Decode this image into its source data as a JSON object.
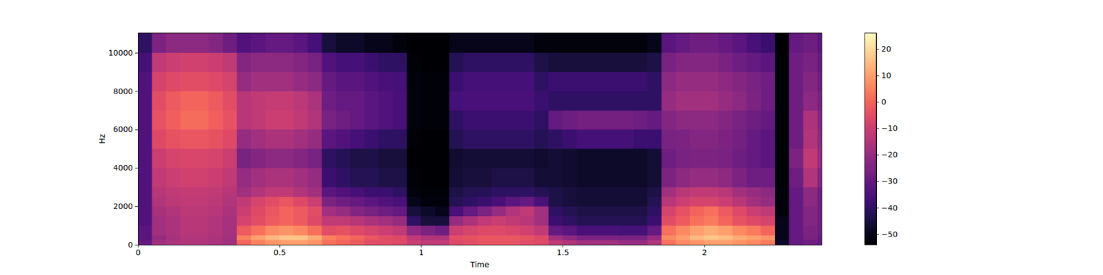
{
  "chart_data": {
    "type": "heatmap",
    "x_label": "Time",
    "y_label": "Hz",
    "color": "magma",
    "xlim": [
      0,
      2.415
    ],
    "ylim": [
      0,
      11025
    ],
    "xticks": [
      0,
      0.5,
      1,
      1.5,
      2
    ],
    "yticks": [
      0,
      2000,
      4000,
      6000,
      8000,
      10000
    ],
    "x_edges": [
      0,
      0.05,
      0.1,
      0.15,
      0.2,
      0.25,
      0.3,
      0.35,
      0.4,
      0.45,
      0.5,
      0.55,
      0.6,
      0.65,
      0.7,
      0.75,
      0.8,
      0.85,
      0.9,
      0.95,
      1,
      1.05,
      1.1,
      1.15,
      1.2,
      1.25,
      1.3,
      1.35,
      1.4,
      1.45,
      1.5,
      1.55,
      1.6,
      1.65,
      1.7,
      1.75,
      1.8,
      1.85,
      1.9,
      1.95,
      2,
      2.05,
      2.1,
      2.15,
      2.2,
      2.25,
      2.3,
      2.35,
      2.4,
      2.45
    ],
    "y_edges": [
      0,
      250,
      500,
      1000,
      1500,
      2000,
      2500,
      3000,
      4000,
      5000,
      6000,
      7000,
      8000,
      9000,
      10000,
      11025
    ],
    "z": [
      [
        -30,
        -18,
        -16,
        -15,
        -15,
        -16,
        -18,
        0,
        5,
        8,
        10,
        10,
        8,
        2,
        0,
        -2,
        -5,
        -5,
        -6,
        -10,
        -12,
        -12,
        -6,
        -5,
        -4,
        -4,
        -4,
        -5,
        -6,
        -12,
        -15,
        -18,
        -18,
        -18,
        -20,
        -20,
        -15,
        2,
        6,
        8,
        10,
        10,
        8,
        6,
        4,
        -48,
        -30,
        -28,
        -30
      ],
      [
        -32,
        -20,
        -17,
        -15,
        -15,
        -16,
        -18,
        5,
        10,
        14,
        16,
        16,
        12,
        5,
        2,
        0,
        -3,
        -5,
        -6,
        -12,
        -15,
        -15,
        -5,
        -4,
        -3,
        -3,
        -3,
        -4,
        -6,
        -18,
        -22,
        -25,
        -25,
        -25,
        -26,
        -26,
        -20,
        6,
        10,
        14,
        16,
        15,
        12,
        10,
        8,
        -50,
        -30,
        -26,
        -30
      ],
      [
        -32,
        -18,
        -16,
        -14,
        -14,
        -15,
        -17,
        -2,
        2,
        6,
        8,
        6,
        2,
        -5,
        -4,
        -6,
        -8,
        -10,
        -12,
        -22,
        -25,
        -28,
        -10,
        -8,
        -6,
        -6,
        -7,
        -9,
        -12,
        -30,
        -32,
        -35,
        -35,
        -35,
        -36,
        -36,
        -30,
        2,
        6,
        10,
        12,
        10,
        6,
        4,
        0,
        -50,
        -30,
        -25,
        -28
      ],
      [
        -34,
        -18,
        -16,
        -14,
        -14,
        -15,
        -17,
        -8,
        -5,
        -2,
        0,
        -2,
        -6,
        -12,
        -12,
        -14,
        -16,
        -18,
        -20,
        -40,
        -45,
        -45,
        -20,
        -16,
        -12,
        -10,
        -12,
        -14,
        -18,
        -38,
        -40,
        -42,
        -42,
        -42,
        -42,
        -42,
        -38,
        -5,
        -2,
        2,
        4,
        0,
        -4,
        -6,
        -8,
        -50,
        -30,
        -24,
        -28
      ],
      [
        -34,
        -17,
        -15,
        -13,
        -13,
        -14,
        -16,
        -10,
        -6,
        -3,
        0,
        -2,
        -5,
        -18,
        -20,
        -24,
        -26,
        -28,
        -30,
        -45,
        -48,
        -50,
        -35,
        -30,
        -25,
        -20,
        -15,
        -12,
        -18,
        -40,
        -42,
        -44,
        -44,
        -44,
        -44,
        -44,
        -40,
        -8,
        -4,
        0,
        2,
        -2,
        -6,
        -10,
        -12,
        -52,
        -30,
        -24,
        -28
      ],
      [
        -34,
        -15,
        -13,
        -12,
        -12,
        -13,
        -15,
        -12,
        -8,
        -5,
        -3,
        -6,
        -10,
        -25,
        -28,
        -30,
        -32,
        -34,
        -35,
        -50,
        -52,
        -52,
        -42,
        -40,
        -38,
        -35,
        -32,
        -30,
        -35,
        -44,
        -45,
        -46,
        -46,
        -46,
        -46,
        -46,
        -42,
        -14,
        -10,
        -8,
        -8,
        -10,
        -14,
        -18,
        -20,
        -52,
        -30,
        -22,
        -28
      ],
      [
        -34,
        -14,
        -12,
        -11,
        -11,
        -12,
        -14,
        -18,
        -15,
        -12,
        -12,
        -15,
        -18,
        -32,
        -34,
        -36,
        -38,
        -38,
        -40,
        -52,
        -53,
        -53,
        -44,
        -42,
        -42,
        -40,
        -40,
        -40,
        -42,
        -44,
        -45,
        -46,
        -46,
        -46,
        -46,
        -46,
        -44,
        -18,
        -14,
        -12,
        -12,
        -14,
        -18,
        -20,
        -22,
        -52,
        -30,
        -22,
        -28
      ],
      [
        -34,
        -12,
        -10,
        -9,
        -9,
        -10,
        -12,
        -20,
        -18,
        -16,
        -16,
        -18,
        -20,
        -38,
        -40,
        -42,
        -42,
        -44,
        -44,
        -53,
        -54,
        -54,
        -46,
        -45,
        -45,
        -44,
        -44,
        -44,
        -46,
        -46,
        -47,
        -48,
        -48,
        -48,
        -48,
        -48,
        -46,
        -25,
        -22,
        -20,
        -20,
        -22,
        -25,
        -28,
        -28,
        -53,
        -28,
        -15,
        -24
      ],
      [
        -34,
        -10,
        -8,
        -7,
        -7,
        -8,
        -10,
        -26,
        -24,
        -22,
        -22,
        -24,
        -26,
        -40,
        -42,
        -44,
        -44,
        -45,
        -45,
        -54,
        -54,
        -54,
        -47,
        -46,
        -46,
        -46,
        -46,
        -46,
        -47,
        -46,
        -47,
        -48,
        -48,
        -48,
        -48,
        -48,
        -46,
        -28,
        -26,
        -25,
        -25,
        -26,
        -28,
        -30,
        -32,
        -53,
        -25,
        -12,
        -20
      ],
      [
        -34,
        -6,
        -4,
        -3,
        -3,
        -4,
        -6,
        -20,
        -18,
        -16,
        -16,
        -18,
        -20,
        -32,
        -34,
        -36,
        -38,
        -40,
        -40,
        -53,
        -54,
        -54,
        -42,
        -40,
        -40,
        -40,
        -40,
        -40,
        -42,
        -40,
        -38,
        -36,
        -36,
        -36,
        -36,
        -38,
        -38,
        -26,
        -25,
        -24,
        -24,
        -25,
        -27,
        -30,
        -32,
        -53,
        -28,
        -15,
        -22
      ],
      [
        -34,
        -4,
        -1,
        1,
        1,
        -1,
        -4,
        -14,
        -12,
        -10,
        -10,
        -12,
        -15,
        -26,
        -28,
        -30,
        -32,
        -34,
        -35,
        -52,
        -53,
        -53,
        -40,
        -38,
        -38,
        -38,
        -38,
        -38,
        -40,
        -30,
        -28,
        -27,
        -27,
        -27,
        -27,
        -28,
        -30,
        -24,
        -22,
        -22,
        -22,
        -24,
        -26,
        -28,
        -30,
        -53,
        -28,
        -16,
        -24
      ],
      [
        -34,
        -5,
        -2,
        0,
        0,
        -2,
        -5,
        -14,
        -12,
        -11,
        -11,
        -13,
        -16,
        -28,
        -30,
        -30,
        -32,
        -34,
        -35,
        -52,
        -53,
        -53,
        -36,
        -35,
        -35,
        -35,
        -35,
        -35,
        -38,
        -40,
        -40,
        -40,
        -40,
        -40,
        -40,
        -40,
        -40,
        -20,
        -18,
        -18,
        -18,
        -20,
        -22,
        -25,
        -28,
        -53,
        -28,
        -22,
        -26
      ],
      [
        -34,
        -8,
        -6,
        -5,
        -5,
        -6,
        -8,
        -20,
        -18,
        -18,
        -18,
        -20,
        -22,
        -30,
        -32,
        -32,
        -34,
        -35,
        -36,
        -52,
        -53,
        -53,
        -38,
        -36,
        -36,
        -36,
        -36,
        -36,
        -40,
        -38,
        -38,
        -38,
        -38,
        -38,
        -38,
        -38,
        -40,
        -22,
        -20,
        -20,
        -20,
        -22,
        -24,
        -26,
        -28,
        -53,
        -28,
        -24,
        -28
      ],
      [
        -36,
        -12,
        -10,
        -9,
        -9,
        -10,
        -12,
        -24,
        -22,
        -22,
        -22,
        -24,
        -26,
        -34,
        -36,
        -36,
        -38,
        -40,
        -40,
        -53,
        -54,
        -54,
        -42,
        -40,
        -40,
        -40,
        -40,
        -40,
        -44,
        -45,
        -45,
        -45,
        -45,
        -45,
        -45,
        -45,
        -44,
        -26,
        -24,
        -24,
        -24,
        -26,
        -28,
        -30,
        -32,
        -53,
        -28,
        -26,
        -30
      ],
      [
        -40,
        -25,
        -22,
        -22,
        -22,
        -24,
        -28,
        -34,
        -32,
        -30,
        -30,
        -32,
        -36,
        -45,
        -48,
        -48,
        -50,
        -50,
        -52,
        -54,
        -54,
        -54,
        -50,
        -50,
        -50,
        -50,
        -50,
        -50,
        -52,
        -52,
        -52,
        -52,
        -52,
        -52,
        -52,
        -52,
        -50,
        -32,
        -30,
        -28,
        -28,
        -30,
        -32,
        -35,
        -38,
        -54,
        -30,
        -28,
        -32
      ]
    ],
    "colorbar": {
      "range": [
        -54,
        26
      ],
      "ticks": [
        {
          "value": -50,
          "label": "−50"
        },
        {
          "value": -40,
          "label": "−40"
        },
        {
          "value": -30,
          "label": "−30"
        },
        {
          "value": -20,
          "label": "−20"
        },
        {
          "value": -10,
          "label": "−10"
        },
        0,
        10,
        20
      ]
    }
  }
}
